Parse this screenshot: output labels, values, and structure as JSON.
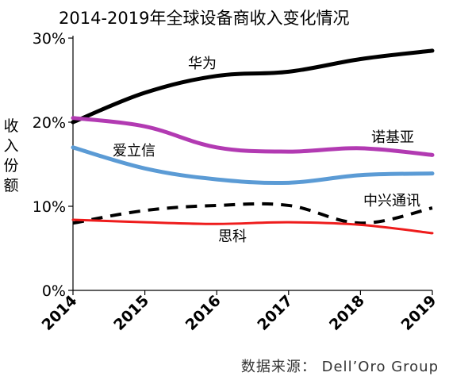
{
  "chart_data": {
    "type": "line",
    "title": "2014-2019年全球设备商收入变化情况",
    "ylabel": "收入份额",
    "xlabel": "",
    "x": [
      2014,
      2015,
      2016,
      2017,
      2018,
      2019
    ],
    "x_tick_labels": [
      "2014",
      "2015",
      "2016",
      "2017",
      "2018",
      "2019"
    ],
    "ylim": [
      0,
      30
    ],
    "y_ticks": [
      0,
      10,
      20,
      30
    ],
    "y_tick_labels": [
      "0%",
      "10%",
      "20%",
      "30%"
    ],
    "grid": false,
    "legend": "inline labels",
    "source": "数据来源： Dell’Oro Group",
    "series": [
      {
        "name": "华为",
        "color": "#000000",
        "dashed": false,
        "values": [
          20.0,
          23.5,
          25.5,
          26.0,
          27.5,
          28.5
        ]
      },
      {
        "name": "诺基亚",
        "color": "#b23ab2",
        "dashed": false,
        "values": [
          20.5,
          19.5,
          17.0,
          16.5,
          16.9,
          16.1
        ]
      },
      {
        "name": "爱立信",
        "color": "#5b9bd5",
        "dashed": false,
        "values": [
          17.0,
          14.5,
          13.2,
          12.8,
          13.7,
          13.9
        ]
      },
      {
        "name": "中兴通讯",
        "color": "#000000",
        "dashed": true,
        "values": [
          8.0,
          9.5,
          10.1,
          10.1,
          8.0,
          9.8
        ]
      },
      {
        "name": "思科",
        "color": "#ee1c1c",
        "dashed": false,
        "values": [
          8.4,
          8.1,
          7.9,
          8.1,
          7.8,
          6.8
        ]
      }
    ]
  }
}
